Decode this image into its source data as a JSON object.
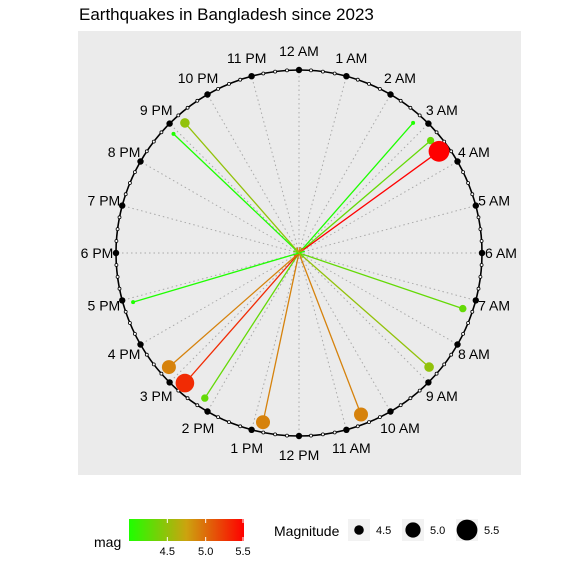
{
  "chart_data": {
    "type": "polar-clock-scatter",
    "title": "Earthquakes in Bangladesh since 2023",
    "hour_labels": [
      "12 AM",
      "1 AM",
      "2 AM",
      "3 AM",
      "4 AM",
      "5 AM",
      "6 AM",
      "7 AM",
      "8 AM",
      "9 AM",
      "10 AM",
      "11 AM",
      "12 PM",
      "1 PM",
      "2 PM",
      "3 PM",
      "4 PM",
      "5 PM",
      "6 PM",
      "7 PM",
      "8 PM",
      "9 PM",
      "10 PM",
      "11 PM"
    ],
    "points": [
      {
        "hour": 2.75,
        "mag": 4.0
      },
      {
        "hour": 3.3,
        "mag": 4.3
      },
      {
        "hour": 3.6,
        "mag": 5.5
      },
      {
        "hour": 7.25,
        "mag": 4.3
      },
      {
        "hour": 8.75,
        "mag": 4.5
      },
      {
        "hour": 10.6,
        "mag": 4.9
      },
      {
        "hour": 12.8,
        "mag": 4.9
      },
      {
        "hour": 14.2,
        "mag": 4.3
      },
      {
        "hour": 14.75,
        "mag": 5.3
      },
      {
        "hour": 15.25,
        "mag": 4.9
      },
      {
        "hour": 16.9,
        "mag": 4.0
      },
      {
        "hour": 20.9,
        "mag": 4.0
      },
      {
        "hour": 21.25,
        "mag": 4.5
      }
    ],
    "colors": {
      "panel_bg": "#ebebeb",
      "grid": "#a8a8a8",
      "mag_low": "#1eff00",
      "mag_mid": "#cca30f",
      "mag_high": "#ff0000"
    },
    "legend": {
      "color_title": "mag",
      "color_ticks": [
        "4.5",
        "5.0",
        "5.5"
      ],
      "size_title": "Magnitude",
      "size_entries": [
        "4.5",
        "5.0",
        "5.5"
      ],
      "position": "bottom"
    }
  }
}
